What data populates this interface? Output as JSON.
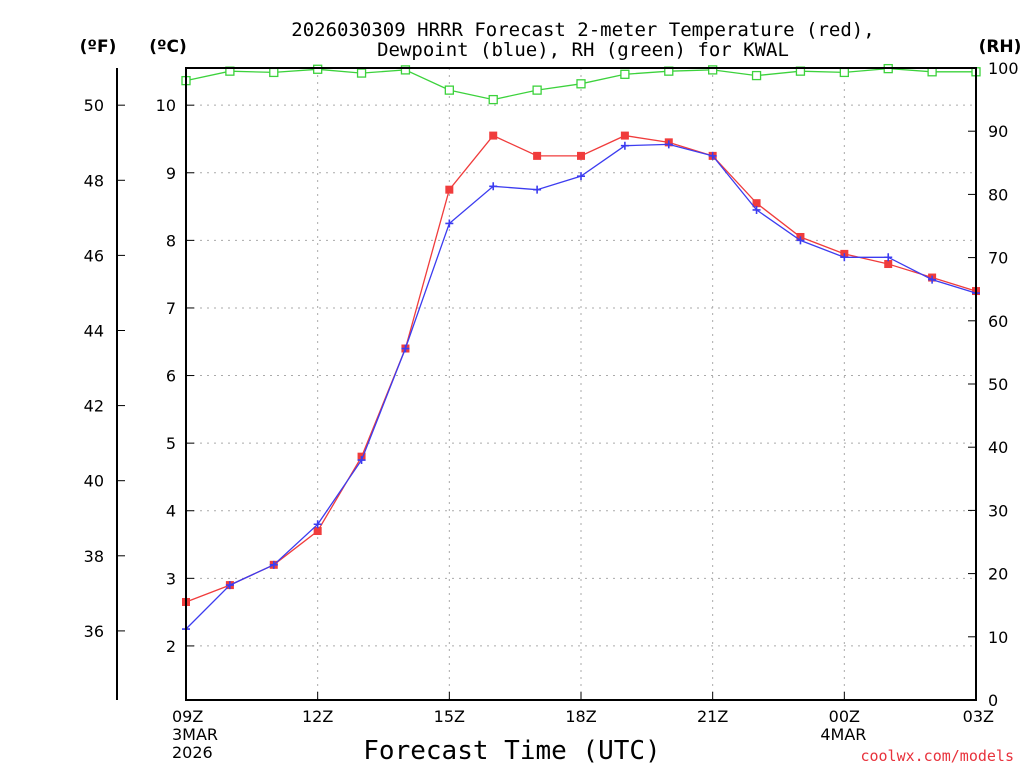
{
  "chart_data": {
    "type": "line",
    "title_line1": "2026030309 HRRR Forecast 2-meter Temperature (red),",
    "title_line2": "Dewpoint (blue), RH (green) for KWAL",
    "xlabel": "Forecast Time (UTC)",
    "credit": "coolwx.com/models",
    "unit_labels": {
      "fahrenheit": "(ºF)",
      "celsius": "(ºC)",
      "rh": "(RH)"
    },
    "x_hours": [
      0,
      1,
      2,
      3,
      4,
      5,
      6,
      7,
      8,
      9,
      10,
      11,
      12,
      13,
      14,
      15,
      16,
      17,
      18
    ],
    "x_ticks": [
      {
        "hour": 0,
        "label": "09Z",
        "sub1": "3MAR",
        "sub2": "2026"
      },
      {
        "hour": 3,
        "label": "12Z"
      },
      {
        "hour": 6,
        "label": "15Z"
      },
      {
        "hour": 9,
        "label": "18Z"
      },
      {
        "hour": 12,
        "label": "21Z"
      },
      {
        "hour": 15,
        "label": "00Z",
        "sub1": "4MAR"
      },
      {
        "hour": 18,
        "label": "03Z"
      }
    ],
    "y_celsius": {
      "min": 1.2,
      "max": 10.55,
      "ticks": [
        2,
        3,
        4,
        5,
        6,
        7,
        8,
        9,
        10
      ]
    },
    "y_fahrenheit": {
      "ticks": [
        36,
        38,
        40,
        42,
        44,
        46,
        48,
        50
      ]
    },
    "y_rh": {
      "min": 0,
      "max": 100,
      "ticks": [
        0,
        10,
        20,
        30,
        40,
        50,
        60,
        70,
        80,
        90,
        100
      ]
    },
    "series": [
      {
        "name": "Temperature",
        "unit": "C",
        "color": "#f03c3c",
        "marker": "square",
        "values": [
          2.65,
          2.9,
          3.2,
          3.7,
          4.8,
          6.4,
          8.75,
          9.55,
          9.25,
          9.25,
          9.55,
          9.45,
          9.25,
          8.55,
          8.05,
          7.8,
          7.65,
          7.45,
          7.25
        ]
      },
      {
        "name": "Dewpoint",
        "unit": "C",
        "color": "#3c3cf0",
        "marker": "plus",
        "values": [
          2.25,
          2.9,
          3.2,
          3.8,
          4.75,
          6.4,
          8.25,
          8.8,
          8.75,
          8.95,
          9.4,
          9.42,
          9.25,
          8.45,
          8.0,
          7.75,
          7.75,
          7.42,
          7.22
        ]
      },
      {
        "name": "RH",
        "unit": "%",
        "color": "#3cd23c",
        "marker": "open-square",
        "values": [
          98,
          99.5,
          99.3,
          99.8,
          99.2,
          99.7,
          96.5,
          95,
          96.5,
          97.5,
          99,
          99.5,
          99.7,
          98.8,
          99.5,
          99.3,
          99.9,
          99.4,
          99.4
        ]
      }
    ]
  }
}
